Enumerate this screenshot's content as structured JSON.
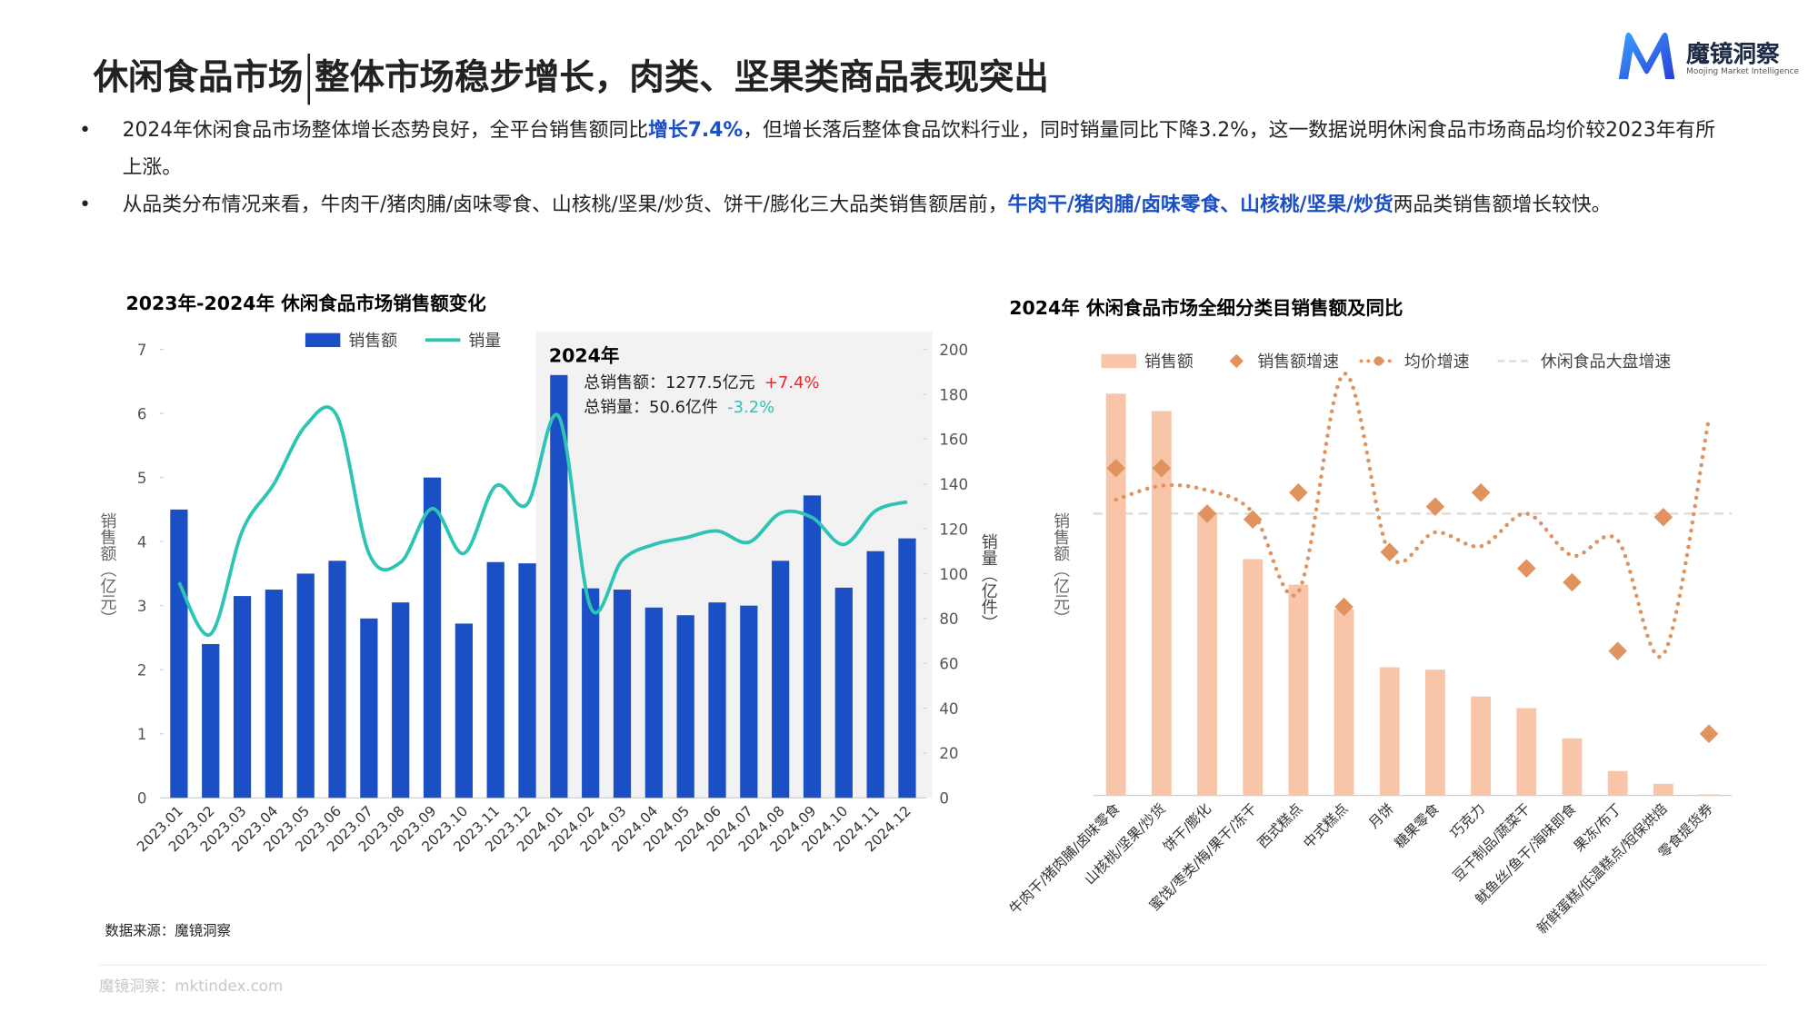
{
  "header": {
    "title_main": "休闲食品市场",
    "title_sub": "整体市场稳步增长，肉类、坚果类商品表现突出"
  },
  "logo": {
    "name": "魔镜洞察",
    "tagline": "Moojing Market Intelligence"
  },
  "bullets": [
    [
      {
        "text": "2024年休闲食品市场整体增长态势良好，全平台销售额同比"
      },
      {
        "text": "增长7.4%",
        "emphasis": true
      },
      {
        "text": "，但增长落后整体食品饮料行业，同时销量同比下降3.2%，这一数据说明休闲食品市场商品均价较2023年有所上涨。"
      }
    ],
    [
      {
        "text": "从品类分布情况来看，牛肉干/猪肉脯/卤味零食、山核桃/坚果/炒货、饼干/膨化三大品类销售额居前，"
      },
      {
        "text": "牛肉干/猪肉脯/卤味零食、山核桃/坚果/炒货",
        "emphasis": true
      },
      {
        "text": "两品类销售额增长较快。"
      }
    ]
  ],
  "chart_data": [
    {
      "type": "combo",
      "title": "2023年-2024年 休闲食品市场销售额变化",
      "categories": [
        "2023.01",
        "2023.02",
        "2023.03",
        "2023.04",
        "2023.05",
        "2023.06",
        "2023.07",
        "2023.08",
        "2023.09",
        "2023.10",
        "2023.11",
        "2023.12",
        "2024.01",
        "2024.02",
        "2024.03",
        "2024.04",
        "2024.05",
        "2024.06",
        "2024.07",
        "2024.08",
        "2024.09",
        "2024.10",
        "2024.11",
        "2024.12"
      ],
      "series": [
        {
          "name": "销售额",
          "type": "bar",
          "color": "#1a4fc6",
          "values": [
            4.5,
            2.4,
            3.15,
            3.25,
            3.5,
            3.7,
            2.8,
            3.05,
            5.0,
            2.72,
            3.68,
            3.66,
            6.6,
            3.27,
            3.25,
            2.97,
            2.85,
            3.05,
            3.0,
            3.7,
            4.72,
            3.28,
            3.85,
            4.05
          ]
        },
        {
          "name": "销量",
          "type": "line",
          "axis": "y2",
          "color": "#2ec4b4",
          "values": [
            96,
            73,
            119,
            140,
            166,
            170,
            109,
            105,
            129,
            109,
            139,
            131,
            170,
            85,
            106,
            113,
            116,
            119,
            114,
            127,
            125,
            113,
            128,
            132
          ]
        }
      ],
      "ylabel": "销售额（亿元）",
      "y2label": "销量（亿件）",
      "ylim": [
        0,
        7
      ],
      "yticks": [
        0,
        1,
        2,
        3,
        4,
        5,
        6,
        7
      ],
      "y2lim": [
        0,
        200
      ],
      "y2ticks": [
        0,
        20,
        40,
        60,
        80,
        100,
        120,
        140,
        160,
        180,
        200
      ],
      "annotation": {
        "title": "2024年",
        "lines": [
          {
            "text": "总销售额：1277.5亿元",
            "change": "+7.4%",
            "color": "#e8282b"
          },
          {
            "text": "总销量：50.6亿件",
            "change": "-3.2%",
            "color": "#2ec4b4"
          }
        ]
      }
    },
    {
      "type": "combo",
      "title": "2024年 休闲食品市场全细分类目销售额及同比",
      "categories": [
        "牛肉干/猪肉脯/卤味零食",
        "山核桃/坚果/炒货",
        "饼干/膨化",
        "蜜饯/枣类/梅/果干/冻干",
        "西式糕点",
        "中式糕点",
        "月饼",
        "糖果零食",
        "巧克力",
        "豆干制品/蔬菜干",
        "鱿鱼丝/鱼干/海味即食",
        "果冻/布丁",
        "新鲜蛋糕/低温糕点/短保烘焙",
        "零食提货券"
      ],
      "series": [
        {
          "name": "销售额",
          "type": "bar",
          "color": "#f9c5a8",
          "values": [
            345,
            330,
            243,
            203,
            181,
            160,
            110,
            108,
            85,
            75,
            49,
            21,
            10,
            1
          ]
        },
        {
          "name": "销售额增速",
          "type": "diamond",
          "axis": "y2",
          "color": "#e0935f",
          "values": [
            15.2,
            15.2,
            7.4,
            6.4,
            11,
            -8.6,
            0.8,
            8.6,
            11,
            -2,
            -4.4,
            -16.2,
            6.8,
            -30.4
          ]
        },
        {
          "name": "均价增速",
          "type": "dotted",
          "axis": "y2",
          "color": "#e0935f",
          "values": [
            9.8,
            12.2,
            11.4,
            7.6,
            -6,
            31.4,
            0.4,
            4.2,
            1.8,
            7.4,
            0.2,
            2.8,
            -16.8,
            23.8
          ]
        }
      ],
      "ylabel": "销售额（亿元）",
      "ylim": [
        0,
        383
      ],
      "y2lim": [
        -41,
        35.6
      ],
      "reference_line": {
        "name": "休闲食品大盘增速",
        "value": 7.4,
        "color": "#dddddd"
      }
    }
  ],
  "source": "数据来源：魔镜洞察",
  "footer": "魔镜洞察：mktindex.com"
}
